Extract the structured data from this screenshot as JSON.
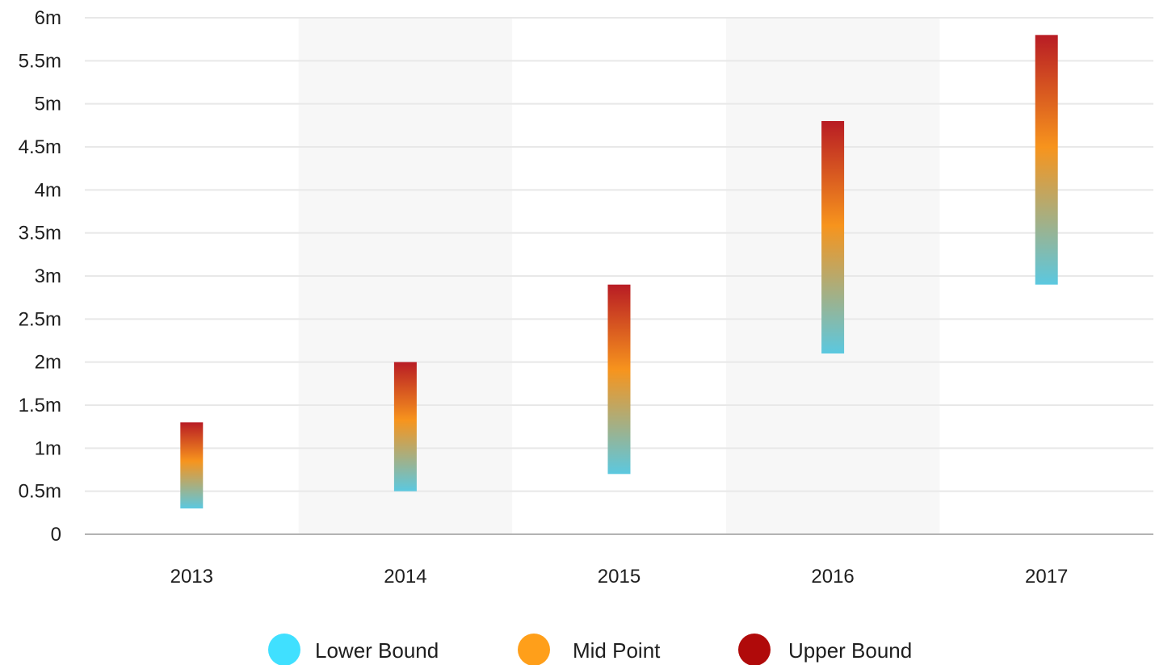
{
  "chart_data": {
    "type": "bar",
    "subtype": "range",
    "title": "",
    "xlabel": "",
    "ylabel": "",
    "categories": [
      "2013",
      "2014",
      "2015",
      "2016",
      "2017"
    ],
    "series": [
      {
        "name": "Lower Bound",
        "color": "#40e0ff",
        "values": [
          300000,
          500000,
          700000,
          2100000,
          2900000
        ]
      },
      {
        "name": "Mid Point",
        "color": "#ff9f1a",
        "values": [
          800000,
          1250000,
          1800000,
          3450000,
          4350000
        ]
      },
      {
        "name": "Upper Bound",
        "color": "#b00a0a",
        "values": [
          1300000,
          2000000,
          2900000,
          4800000,
          5800000
        ]
      }
    ],
    "ylim": [
      0,
      6000000
    ],
    "y_ticks": [
      0,
      500000,
      1000000,
      1500000,
      2000000,
      2500000,
      3000000,
      3500000,
      4000000,
      4500000,
      5000000,
      5500000,
      6000000
    ],
    "y_tick_labels": [
      "0",
      "0.5m",
      "1m",
      "1.5m",
      "2m",
      "2.5m",
      "3m",
      "3.5m",
      "4m",
      "4.5m",
      "5m",
      "5.5m",
      "6m"
    ],
    "grid": true,
    "alternating_column_shading": true,
    "legend_position": "bottom",
    "gradient_colors": {
      "bottom": "#5bc8e0",
      "middle": "#f7941d",
      "top": "#b81c24"
    }
  }
}
